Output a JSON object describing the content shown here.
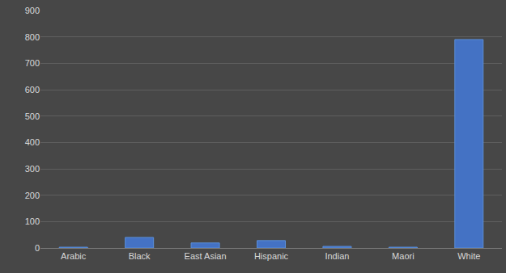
{
  "chart_data": {
    "type": "bar",
    "categories": [
      "Arabic",
      "Black",
      "East Asian",
      "Hispanic",
      "Indian",
      "Maori",
      "White"
    ],
    "values": [
      3,
      40,
      19,
      28,
      6,
      3,
      790
    ],
    "color": "#4472c4",
    "ylim": [
      0,
      900
    ],
    "yticks": [
      0,
      100,
      200,
      300,
      400,
      500,
      600,
      700,
      800,
      900
    ],
    "grid": true
  }
}
